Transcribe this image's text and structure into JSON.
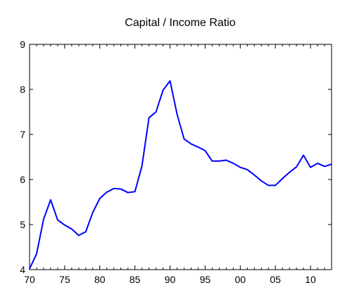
{
  "chart_data": {
    "type": "line",
    "title": "Capital / Income Ratio",
    "xlabel": "",
    "ylabel": "",
    "x_tick_labels": [
      "70",
      "75",
      "80",
      "85",
      "90",
      "95",
      "00",
      "05",
      "10"
    ],
    "x_tick_values": [
      1970,
      1975,
      1980,
      1985,
      1990,
      1995,
      2000,
      2005,
      2010
    ],
    "y_tick_labels": [
      "4",
      "5",
      "6",
      "7",
      "8",
      "9"
    ],
    "y_tick_values": [
      4,
      5,
      6,
      7,
      8,
      9
    ],
    "xlim": [
      1970,
      2013
    ],
    "ylim": [
      4,
      9
    ],
    "grid": false,
    "line_color": "#0000ff",
    "series": [
      {
        "x": [
          1970,
          1971,
          1972,
          1973,
          1974,
          1975,
          1976,
          1977,
          1978,
          1979,
          1980,
          1981,
          1982,
          1983,
          1984,
          1985,
          1986,
          1987,
          1988,
          1989,
          1990,
          1991,
          1992,
          1993,
          1994,
          1995,
          1996,
          1997,
          1998,
          1999,
          2000,
          2001,
          2002,
          2003,
          2004,
          2005,
          2006,
          2007,
          2008,
          2009,
          2010,
          2011,
          2012,
          2013
        ],
        "values": [
          4.02,
          4.35,
          5.12,
          5.55,
          5.1,
          4.99,
          4.9,
          4.76,
          4.84,
          5.27,
          5.58,
          5.72,
          5.8,
          5.79,
          5.71,
          5.73,
          6.3,
          7.37,
          7.5,
          7.98,
          8.19,
          7.45,
          6.9,
          6.79,
          6.72,
          6.64,
          6.41,
          6.41,
          6.43,
          6.36,
          6.27,
          6.22,
          6.1,
          5.97,
          5.87,
          5.87,
          6.02,
          6.16,
          6.28,
          6.54,
          6.27,
          6.36,
          6.29,
          6.34
        ]
      }
    ]
  }
}
